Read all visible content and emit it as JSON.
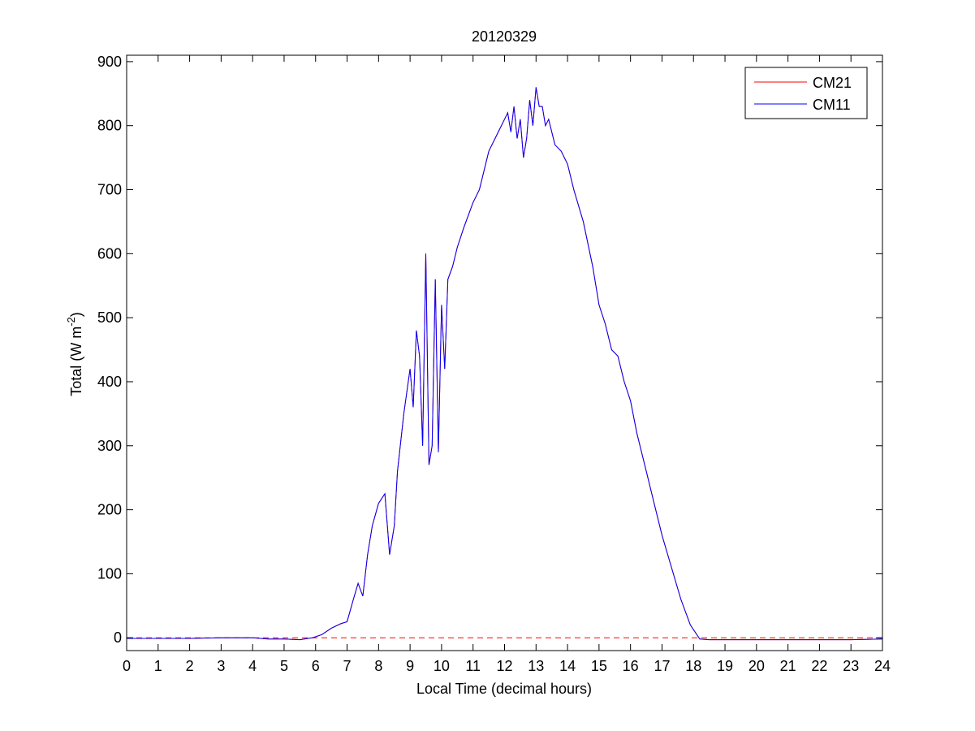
{
  "chart_data": {
    "type": "line",
    "title": "20120329",
    "xlabel": "Local Time (decimal hours)",
    "ylabel": {
      "main": "Total (W m",
      "sup": "-2",
      "close": ")"
    },
    "xlim": [
      0,
      24
    ],
    "ylim": [
      -20,
      910
    ],
    "x_ticks": [
      0,
      1,
      2,
      3,
      4,
      5,
      6,
      7,
      8,
      9,
      10,
      11,
      12,
      13,
      14,
      15,
      16,
      17,
      18,
      19,
      20,
      21,
      22,
      23,
      24
    ],
    "y_ticks": [
      0,
      100,
      200,
      300,
      400,
      500,
      600,
      700,
      800,
      900
    ],
    "grid": false,
    "legend_position": "top-right",
    "reference_line": {
      "y": 0,
      "style": "dashed",
      "color": "#ff0000"
    },
    "series": [
      {
        "name": "CM21",
        "color": "#ff0000",
        "x": [
          0,
          1,
          2,
          3,
          4,
          4.5,
          5,
          5.5,
          5.9,
          6.2,
          6.5,
          6.8,
          7.0,
          7.2,
          7.35,
          7.5,
          7.65,
          7.8,
          8.0,
          8.2,
          8.35,
          8.5,
          8.6,
          8.8,
          9.0,
          9.1,
          9.2,
          9.3,
          9.4,
          9.5,
          9.6,
          9.7,
          9.8,
          9.9,
          10.0,
          10.1,
          10.2,
          10.35,
          10.5,
          10.7,
          11.0,
          11.2,
          11.5,
          11.8,
          12.0,
          12.1,
          12.2,
          12.3,
          12.4,
          12.5,
          12.6,
          12.7,
          12.8,
          12.9,
          13.0,
          13.1,
          13.2,
          13.3,
          13.4,
          13.5,
          13.6,
          13.8,
          14.0,
          14.2,
          14.5,
          14.8,
          15.0,
          15.2,
          15.4,
          15.6,
          15.8,
          16.0,
          16.2,
          16.5,
          16.8,
          17.0,
          17.3,
          17.6,
          17.9,
          18.2,
          18.5,
          18.7,
          19.0,
          20.0,
          21.0,
          22.0,
          23.0,
          24.0
        ],
        "values": [
          -1,
          -1,
          -1,
          0,
          0,
          -2,
          -2,
          -3,
          0,
          5,
          15,
          22,
          25,
          60,
          85,
          65,
          130,
          175,
          210,
          225,
          130,
          175,
          260,
          350,
          420,
          360,
          480,
          440,
          300,
          600,
          270,
          300,
          560,
          290,
          520,
          420,
          560,
          580,
          610,
          640,
          680,
          700,
          760,
          790,
          810,
          820,
          790,
          830,
          780,
          810,
          750,
          780,
          840,
          800,
          860,
          830,
          830,
          800,
          810,
          790,
          770,
          760,
          740,
          700,
          650,
          580,
          520,
          490,
          450,
          440,
          400,
          370,
          320,
          260,
          200,
          160,
          110,
          60,
          20,
          -2,
          -3,
          -3,
          -3,
          -3,
          -3,
          -3,
          -3,
          -2
        ]
      },
      {
        "name": "CM11",
        "color": "#0000ff",
        "x": [
          0,
          1,
          2,
          3,
          4,
          4.5,
          5,
          5.5,
          5.9,
          6.2,
          6.5,
          6.8,
          7.0,
          7.2,
          7.35,
          7.5,
          7.65,
          7.8,
          8.0,
          8.2,
          8.35,
          8.5,
          8.6,
          8.8,
          9.0,
          9.1,
          9.2,
          9.3,
          9.4,
          9.5,
          9.6,
          9.7,
          9.8,
          9.9,
          10.0,
          10.1,
          10.2,
          10.35,
          10.5,
          10.7,
          11.0,
          11.2,
          11.5,
          11.8,
          12.0,
          12.1,
          12.2,
          12.3,
          12.4,
          12.5,
          12.6,
          12.7,
          12.8,
          12.9,
          13.0,
          13.1,
          13.2,
          13.3,
          13.4,
          13.5,
          13.6,
          13.8,
          14.0,
          14.2,
          14.5,
          14.8,
          15.0,
          15.2,
          15.4,
          15.6,
          15.8,
          16.0,
          16.2,
          16.5,
          16.8,
          17.0,
          17.3,
          17.6,
          17.9,
          18.2,
          18.5,
          18.7,
          19.0,
          20.0,
          21.0,
          22.0,
          23.0,
          24.0
        ],
        "values": [
          -1,
          -1,
          -1,
          0,
          0,
          -2,
          -2,
          -3,
          0,
          5,
          15,
          22,
          25,
          60,
          85,
          65,
          130,
          175,
          210,
          225,
          130,
          175,
          260,
          350,
          420,
          360,
          480,
          440,
          300,
          600,
          270,
          300,
          560,
          290,
          520,
          420,
          560,
          580,
          610,
          640,
          680,
          700,
          760,
          790,
          810,
          820,
          790,
          830,
          780,
          810,
          750,
          780,
          840,
          800,
          860,
          830,
          830,
          800,
          810,
          790,
          770,
          760,
          740,
          700,
          650,
          580,
          520,
          490,
          450,
          440,
          400,
          370,
          320,
          260,
          200,
          160,
          110,
          60,
          20,
          -2,
          -3,
          -3,
          -3,
          -3,
          -3,
          -3,
          -3,
          -2
        ]
      }
    ]
  }
}
